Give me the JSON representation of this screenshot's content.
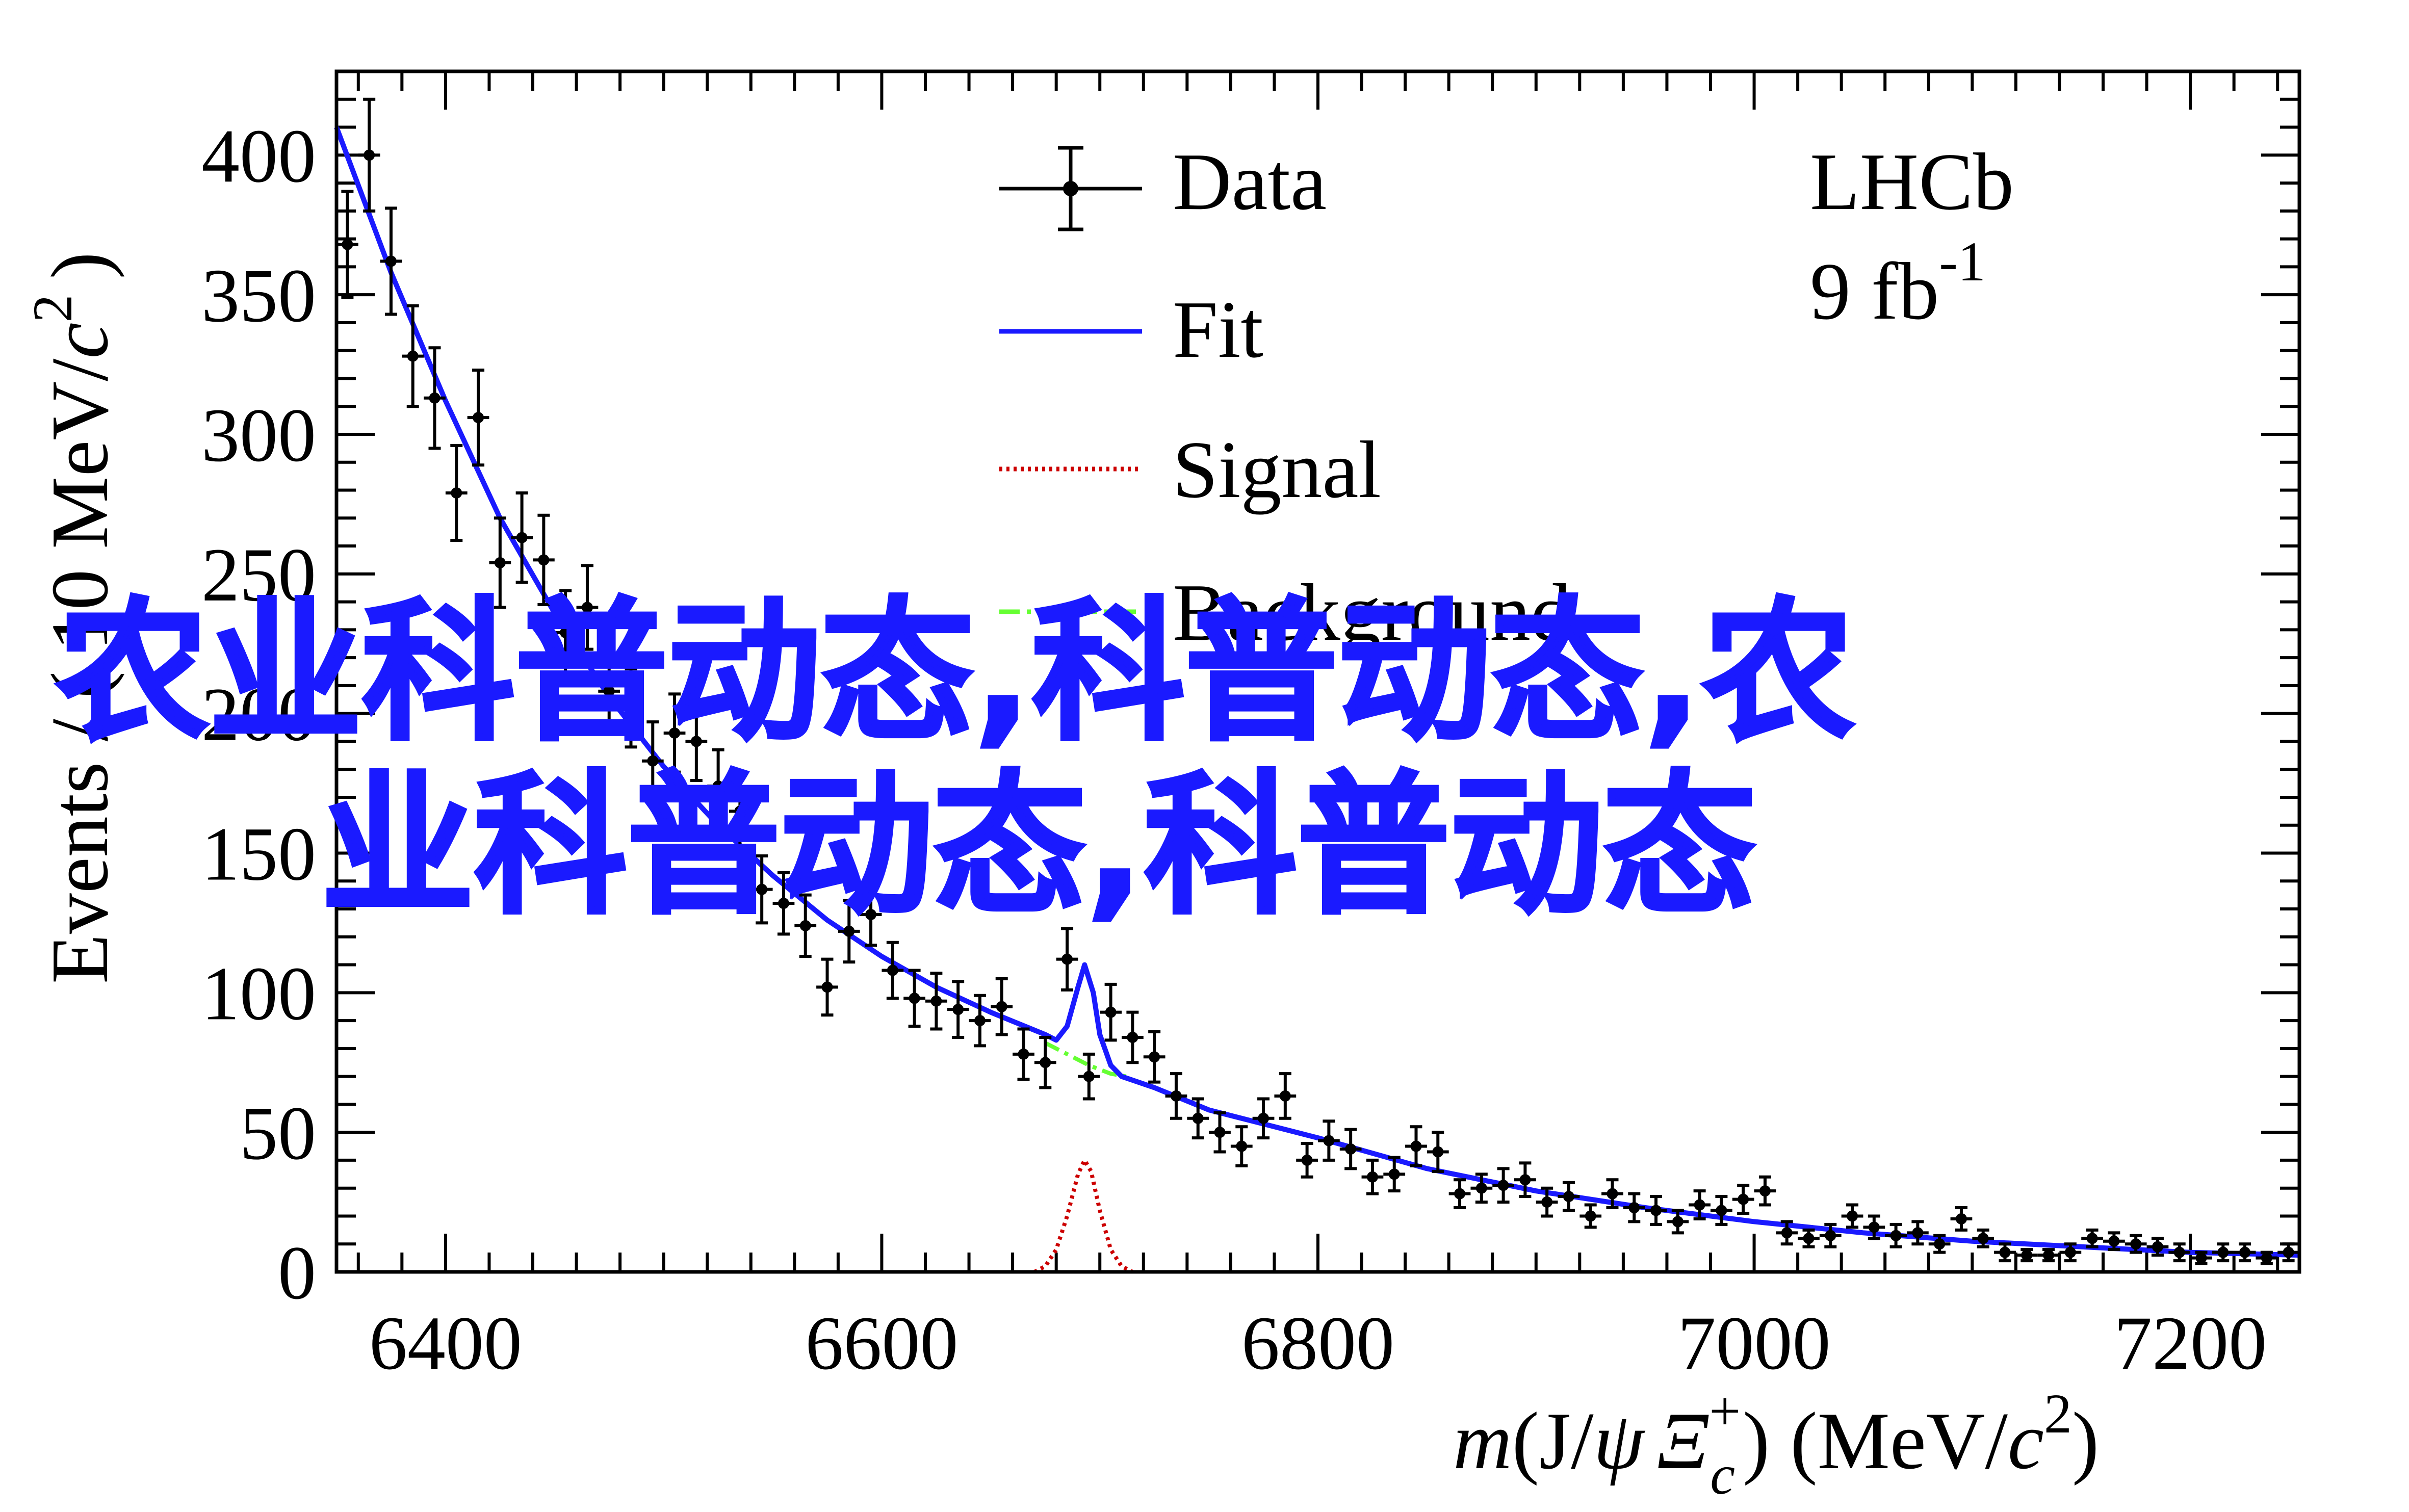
{
  "chart_data": {
    "type": "scatter",
    "experiment": "LHCb",
    "luminosity": "9 fb",
    "luminosity_exp": "-1",
    "ylabel_main": "Events / ( 10 MeV/",
    "ylabel_c": "c",
    "ylabel_sup": "2",
    "ylabel_close": ")",
    "xlabel_m": "m",
    "xlabel_mid": "(J/",
    "xlabel_psi": "ψ",
    "xlabel_xi": "Ξ",
    "xlabel_xi_sup": "+",
    "xlabel_xi_sub": "c",
    "xlabel_units": ") (MeV/",
    "xlabel_c": "c",
    "xlabel_c_sup": "2",
    "xlabel_end": ")",
    "xlim": [
      6350,
      7250
    ],
    "ylim": [
      0,
      430
    ],
    "xticks": [
      6400,
      6600,
      6800,
      7000,
      7200
    ],
    "yticks": [
      0,
      50,
      100,
      150,
      200,
      250,
      300,
      350,
      400
    ],
    "legend": [
      {
        "label": "Data",
        "style": "data",
        "color": "#000000"
      },
      {
        "label": "Fit",
        "style": "solid",
        "color": "#1a1aff"
      },
      {
        "label": "Signal",
        "style": "dotted",
        "color": "#cc0000"
      },
      {
        "label": "Background",
        "style": "dashdot",
        "color": "#66ff33"
      }
    ],
    "legend_position": "top-center",
    "data_points": {
      "x": [
        6355,
        6365,
        6375,
        6385,
        6395,
        6405,
        6415,
        6425,
        6435,
        6445,
        6455,
        6465,
        6475,
        6485,
        6495,
        6505,
        6515,
        6525,
        6535,
        6545,
        6555,
        6565,
        6575,
        6585,
        6595,
        6605,
        6615,
        6625,
        6635,
        6645,
        6655,
        6665,
        6675,
        6685,
        6695,
        6705,
        6715,
        6725,
        6735,
        6745,
        6755,
        6765,
        6775,
        6785,
        6795,
        6805,
        6815,
        6825,
        6835,
        6845,
        6855,
        6865,
        6875,
        6885,
        6895,
        6905,
        6915,
        6925,
        6935,
        6945,
        6955,
        6965,
        6975,
        6985,
        6995,
        7005,
        7015,
        7025,
        7035,
        7045,
        7055,
        7065,
        7075,
        7085,
        7095,
        7105,
        7115,
        7125,
        7135,
        7145,
        7155,
        7165,
        7175,
        7185,
        7195,
        7205,
        7215,
        7225,
        7235,
        7245
      ],
      "y": [
        368,
        400,
        362,
        328,
        313,
        279,
        306,
        254,
        263,
        255,
        229,
        238,
        208,
        202,
        183,
        193,
        190,
        174,
        165,
        137,
        132,
        124,
        102,
        122,
        128,
        108,
        98,
        97,
        94,
        90,
        95,
        78,
        75,
        112,
        70,
        93,
        84,
        77,
        63,
        55,
        50,
        45,
        55,
        63,
        40,
        47,
        44,
        34,
        35,
        45,
        43,
        28,
        30,
        31,
        33,
        25,
        27,
        20,
        28,
        23,
        22,
        18,
        24,
        22,
        26,
        29,
        14,
        12,
        13,
        20,
        16,
        13,
        14,
        10,
        19,
        12,
        7,
        6,
        6,
        7,
        12,
        11,
        10,
        9,
        7,
        5,
        7,
        7,
        5,
        7
      ],
      "yerr": [
        19,
        20,
        19,
        18,
        18,
        17,
        17,
        16,
        16,
        16,
        15,
        15,
        14,
        14,
        14,
        14,
        14,
        13,
        13,
        12,
        11,
        11,
        10,
        11,
        11,
        10,
        10,
        10,
        10,
        9,
        10,
        9,
        9,
        11,
        8,
        10,
        9,
        9,
        8,
        7,
        7,
        7,
        7,
        8,
        6,
        7,
        7,
        6,
        6,
        7,
        7,
        5,
        5,
        6,
        6,
        5,
        5,
        4,
        5,
        5,
        5,
        4,
        5,
        5,
        5,
        5,
        4,
        3,
        4,
        4,
        4,
        4,
        4,
        3,
        4,
        3,
        3,
        2,
        2,
        3,
        3,
        3,
        3,
        3,
        3,
        2,
        3,
        3,
        2,
        3
      ]
    },
    "fit_curve": {
      "x": [
        6350,
        6375,
        6400,
        6425,
        6450,
        6475,
        6500,
        6525,
        6550,
        6575,
        6600,
        6625,
        6650,
        6675,
        6680,
        6685,
        6690,
        6693,
        6697,
        6700,
        6705,
        6710,
        6725,
        6750,
        6775,
        6800,
        6850,
        6900,
        6950,
        7000,
        7050,
        7100,
        7150,
        7200,
        7250
      ],
      "y": [
        410,
        358,
        312,
        270,
        236,
        206,
        181,
        160,
        142,
        126,
        113,
        102,
        93,
        85,
        83,
        88,
        102,
        110,
        100,
        85,
        74,
        70,
        66,
        58,
        53,
        48,
        37,
        29,
        23,
        18,
        14,
        11,
        9,
        7,
        6
      ]
    },
    "signal_curve": {
      "x": [
        6670,
        6675,
        6680,
        6685,
        6690,
        6693,
        6696,
        6700,
        6705,
        6710,
        6715
      ],
      "y": [
        0,
        2,
        8,
        20,
        35,
        40,
        36,
        22,
        8,
        2,
        0
      ]
    },
    "background_curve": {
      "x": [
        6675,
        6685,
        6695,
        6705,
        6712
      ],
      "y": [
        82,
        78,
        74,
        71,
        70
      ]
    }
  },
  "overlay": {
    "line1": "农业科普动态,科普动态,农",
    "line2": "业科普动态,科普动态"
  }
}
